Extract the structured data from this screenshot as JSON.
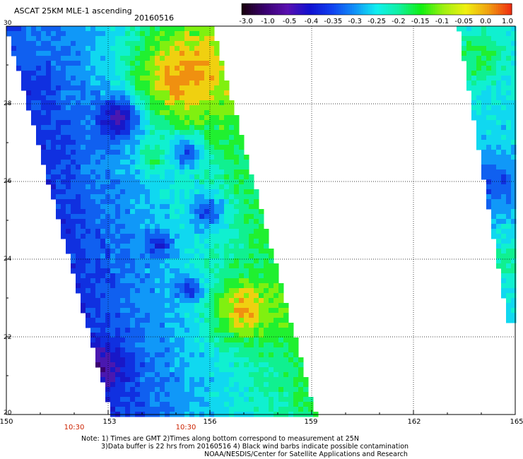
{
  "header": {
    "title": "ASCAT 25KM MLE-1 ascending",
    "date": "20160516"
  },
  "colorbar": {
    "labels": [
      "-3.0",
      "-1.0",
      "-0.5",
      "-0.4",
      "-0.35",
      "-0.3",
      "-0.25",
      "-0.2",
      "-0.15",
      "-0.1",
      "-0.05",
      "0.0",
      "1.0"
    ],
    "colors": [
      "#1a0010",
      "#3a0070",
      "#5a10b0",
      "#1010d0",
      "#1040f0",
      "#1090f8",
      "#10f0f0",
      "#10f0a0",
      "#10f010",
      "#a0f010",
      "#f0f010",
      "#f0a010",
      "#f03010"
    ]
  },
  "axes": {
    "lat_ticks": [
      "30",
      "28",
      "26",
      "24",
      "22",
      "20"
    ],
    "lon_ticks": [
      "150",
      "153",
      "156",
      "159",
      "162",
      "165"
    ],
    "time_labels": [
      "10:30",
      "10:30"
    ]
  },
  "map": {
    "lat_range": [
      20,
      30
    ],
    "lon_range": [
      150,
      165
    ]
  },
  "notes": [
    "Note: 1) Times are GMT 2)Times along bottom correspond to measurement at 25N",
    "3)Data buffer is 22 hrs from 20160516 4) Black wind barbs indicate possible contamination",
    "NOAA/NESDIS/Center for Satellite Applications and Research"
  ]
}
